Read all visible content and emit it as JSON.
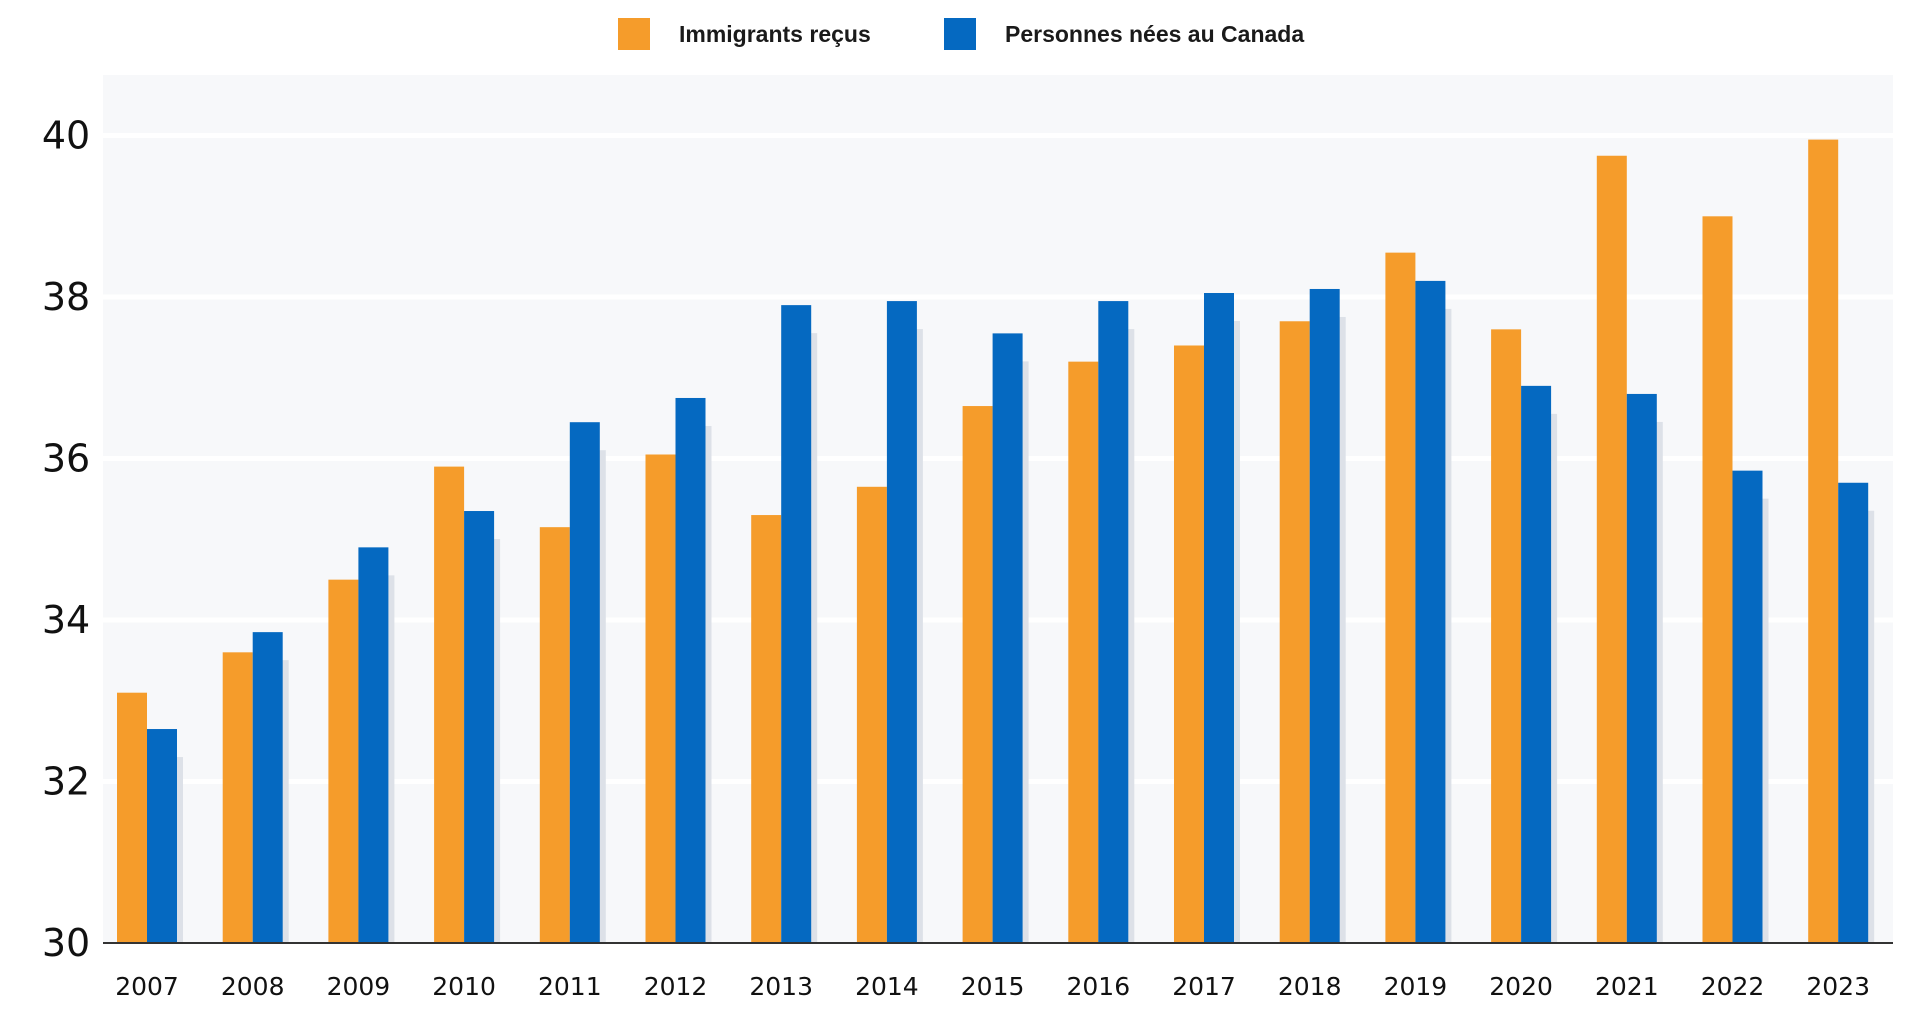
{
  "chart_data": {
    "type": "bar",
    "categories": [
      "2007",
      "2008",
      "2009",
      "2010",
      "2011",
      "2012",
      "2013",
      "2014",
      "2015",
      "2016",
      "2017",
      "2018",
      "2019",
      "2020",
      "2021",
      "2022",
      "2023"
    ],
    "series": [
      {
        "name": "Immigrants reçus",
        "color": "#f59c2b",
        "values": [
          33.1,
          33.6,
          34.5,
          35.9,
          35.15,
          36.05,
          35.3,
          35.65,
          36.65,
          37.2,
          37.4,
          37.7,
          38.55,
          37.6,
          39.75,
          39.0,
          39.95
        ]
      },
      {
        "name": "Personnes nées au Canada",
        "color": "#0569c1",
        "values": [
          32.65,
          33.85,
          34.9,
          35.35,
          36.45,
          36.75,
          37.9,
          37.95,
          37.55,
          37.95,
          38.05,
          38.1,
          38.2,
          36.9,
          36.8,
          35.85,
          35.7
        ]
      }
    ],
    "y_ticks": [
      "30",
      "32",
      "34",
      "36",
      "38",
      "40"
    ],
    "ylim": [
      30,
      40.75
    ],
    "grid": true,
    "legend_position": "top-center",
    "title": "",
    "xlabel": "",
    "ylabel": ""
  },
  "colors": {
    "plot_background": "#f7f8fa",
    "gridline": "#ffffff",
    "shadow": "#dde1e8",
    "axis": "#333333"
  }
}
